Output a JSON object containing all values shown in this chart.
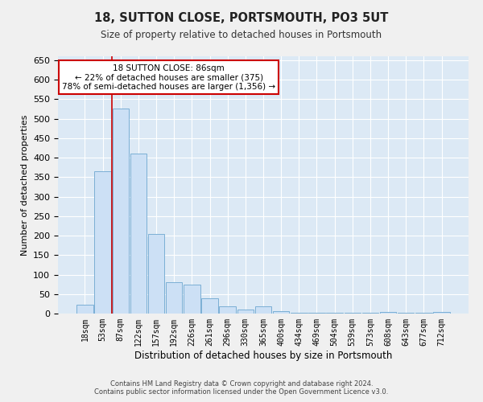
{
  "title": "18, SUTTON CLOSE, PORTSMOUTH, PO3 5UT",
  "subtitle": "Size of property relative to detached houses in Portsmouth",
  "xlabel": "Distribution of detached houses by size in Portsmouth",
  "ylabel": "Number of detached properties",
  "bar_labels": [
    "18sqm",
    "53sqm",
    "87sqm",
    "122sqm",
    "157sqm",
    "192sqm",
    "226sqm",
    "261sqm",
    "296sqm",
    "330sqm",
    "365sqm",
    "400sqm",
    "434sqm",
    "469sqm",
    "504sqm",
    "539sqm",
    "573sqm",
    "608sqm",
    "643sqm",
    "677sqm",
    "712sqm"
  ],
  "bar_values": [
    22,
    365,
    525,
    410,
    205,
    80,
    75,
    40,
    18,
    10,
    18,
    6,
    2,
    2,
    2,
    2,
    2,
    4,
    2,
    2,
    4
  ],
  "bar_color": "#cce0f5",
  "bar_edge_color": "#7bafd4",
  "property_line_x": 1.5,
  "annotation_text": "18 SUTTON CLOSE: 86sqm\n← 22% of detached houses are smaller (375)\n78% of semi-detached houses are larger (1,356) →",
  "annotation_box_color": "#ffffff",
  "annotation_border_color": "#cc0000",
  "ylim": [
    0,
    660
  ],
  "yticks": [
    0,
    50,
    100,
    150,
    200,
    250,
    300,
    350,
    400,
    450,
    500,
    550,
    600,
    650
  ],
  "background_color": "#dce9f5",
  "grid_color": "#ffffff",
  "fig_bg_color": "#f0f0f0",
  "footer_line1": "Contains HM Land Registry data © Crown copyright and database right 2024.",
  "footer_line2": "Contains public sector information licensed under the Open Government Licence v3.0."
}
